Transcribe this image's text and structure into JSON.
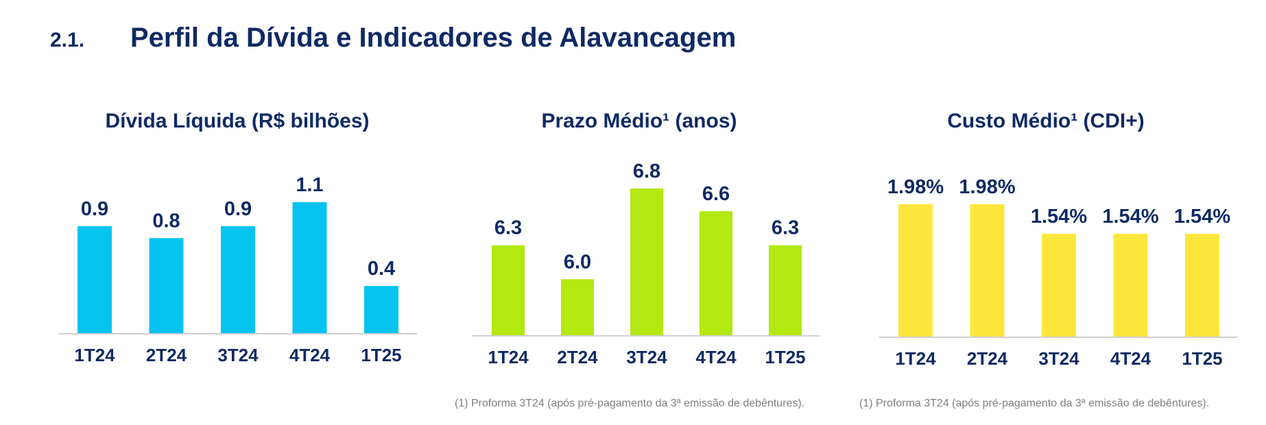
{
  "header": {
    "number": "2.1.",
    "title": "Perfil da Dívida e Indicadores de Alavancagem"
  },
  "colors": {
    "title": "#0f2a64",
    "chart1_bar": "#05c3f0",
    "chart2_bar": "#b3e810",
    "chart3_bar": "#fde63c",
    "axis": "#d0d0d0",
    "footnote": "#7f7f7f"
  },
  "chart_data": [
    {
      "type": "bar",
      "title": "Dívida Líquida (R$ bilhões)",
      "categories": [
        "1T24",
        "2T24",
        "3T24",
        "4T24",
        "1T25"
      ],
      "values": [
        0.9,
        0.8,
        0.9,
        1.1,
        0.4
      ],
      "labels": [
        "0.9",
        "0.8",
        "0.9",
        "1.1",
        "0.4"
      ],
      "xlabel": "",
      "ylabel": "",
      "ylim": [
        0,
        1.1
      ],
      "grid": false,
      "color": "#05c3f0"
    },
    {
      "type": "bar",
      "title": "Prazo Médio¹ (anos)",
      "categories": [
        "1T24",
        "2T24",
        "3T24",
        "4T24",
        "1T25"
      ],
      "values": [
        6.3,
        6.0,
        6.8,
        6.6,
        6.3
      ],
      "labels": [
        "6.3",
        "6.0",
        "6.8",
        "6.6",
        "6.3"
      ],
      "xlabel": "",
      "ylabel": "",
      "ylim": [
        5.5,
        6.8
      ],
      "grid": false,
      "color": "#b3e810"
    },
    {
      "type": "bar",
      "title": "Custo Médio¹ (CDI+)",
      "categories": [
        "1T24",
        "2T24",
        "3T24",
        "4T24",
        "1T25"
      ],
      "values": [
        1.98,
        1.98,
        1.54,
        1.54,
        1.54
      ],
      "labels": [
        "1.98%",
        "1.98%",
        "1.54%",
        "1.54%",
        "1.54%"
      ],
      "xlabel": "",
      "ylabel": "",
      "ylim": [
        0,
        1.98
      ],
      "grid": false,
      "color": "#fde63c"
    }
  ],
  "footnotes": [
    "(1) Proforma 3T24 (após pré-pagamento da 3ª emissão de debêntures).",
    "(1) Proforma 3T24 (após pré-pagamento da 3ª emissão de debêntures)."
  ]
}
